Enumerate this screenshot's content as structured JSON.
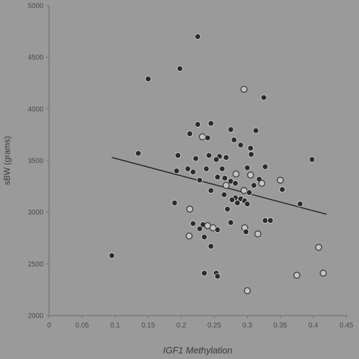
{
  "chart_data": {
    "type": "scatter",
    "title": "",
    "xlabel": "IGF1 Methylation",
    "ylabel": "sBW (grams)",
    "xlim": [
      0,
      0.45
    ],
    "ylim": [
      2000,
      5000
    ],
    "x_ticks": [
      "0",
      "0.05",
      "0.1",
      "0.15",
      "0.2",
      "0.25",
      "0.3",
      "0.35",
      "0.4",
      "0.45"
    ],
    "y_ticks": [
      "2000",
      "2500",
      "3000",
      "3500",
      "4000",
      "4500",
      "5000"
    ],
    "grid": false,
    "legend": "none",
    "colors": {
      "background": "#9a9a9a",
      "point": "#2b2b2b",
      "axis": "#707070",
      "trend": "#1e1e1e"
    },
    "trendline": {
      "x": [
        0.095,
        0.42
      ],
      "y": [
        3530,
        2980
      ]
    },
    "points": [
      {
        "x": 0.225,
        "y": 4700,
        "hollow": false
      },
      {
        "x": 0.15,
        "y": 4290,
        "hollow": false
      },
      {
        "x": 0.198,
        "y": 4390,
        "hollow": false
      },
      {
        "x": 0.295,
        "y": 4190,
        "hollow": true
      },
      {
        "x": 0.325,
        "y": 4110,
        "hollow": false
      },
      {
        "x": 0.225,
        "y": 3850,
        "hollow": false
      },
      {
        "x": 0.245,
        "y": 3860,
        "hollow": false
      },
      {
        "x": 0.275,
        "y": 3800,
        "hollow": false
      },
      {
        "x": 0.313,
        "y": 3790,
        "hollow": false
      },
      {
        "x": 0.213,
        "y": 3760,
        "hollow": false
      },
      {
        "x": 0.232,
        "y": 3730,
        "hollow": true
      },
      {
        "x": 0.24,
        "y": 3720,
        "hollow": false
      },
      {
        "x": 0.28,
        "y": 3700,
        "hollow": false
      },
      {
        "x": 0.29,
        "y": 3650,
        "hollow": false
      },
      {
        "x": 0.305,
        "y": 3620,
        "hollow": false
      },
      {
        "x": 0.135,
        "y": 3570,
        "hollow": false
      },
      {
        "x": 0.195,
        "y": 3550,
        "hollow": false
      },
      {
        "x": 0.242,
        "y": 3550,
        "hollow": false
      },
      {
        "x": 0.258,
        "y": 3540,
        "hollow": false
      },
      {
        "x": 0.268,
        "y": 3530,
        "hollow": false
      },
      {
        "x": 0.306,
        "y": 3560,
        "hollow": false
      },
      {
        "x": 0.222,
        "y": 3520,
        "hollow": false
      },
      {
        "x": 0.253,
        "y": 3510,
        "hollow": false
      },
      {
        "x": 0.398,
        "y": 3510,
        "hollow": false
      },
      {
        "x": 0.21,
        "y": 3420,
        "hollow": false
      },
      {
        "x": 0.238,
        "y": 3420,
        "hollow": false
      },
      {
        "x": 0.262,
        "y": 3420,
        "hollow": false
      },
      {
        "x": 0.3,
        "y": 3430,
        "hollow": false
      },
      {
        "x": 0.327,
        "y": 3440,
        "hollow": false
      },
      {
        "x": 0.193,
        "y": 3400,
        "hollow": false
      },
      {
        "x": 0.218,
        "y": 3390,
        "hollow": false
      },
      {
        "x": 0.283,
        "y": 3370,
        "hollow": true
      },
      {
        "x": 0.305,
        "y": 3360,
        "hollow": true
      },
      {
        "x": 0.255,
        "y": 3340,
        "hollow": false
      },
      {
        "x": 0.266,
        "y": 3330,
        "hollow": false
      },
      {
        "x": 0.318,
        "y": 3320,
        "hollow": false
      },
      {
        "x": 0.228,
        "y": 3310,
        "hollow": false
      },
      {
        "x": 0.275,
        "y": 3300,
        "hollow": false
      },
      {
        "x": 0.35,
        "y": 3310,
        "hollow": true
      },
      {
        "x": 0.282,
        "y": 3280,
        "hollow": false
      },
      {
        "x": 0.322,
        "y": 3280,
        "hollow": true
      },
      {
        "x": 0.268,
        "y": 3260,
        "hollow": true
      },
      {
        "x": 0.31,
        "y": 3260,
        "hollow": false
      },
      {
        "x": 0.245,
        "y": 3210,
        "hollow": false
      },
      {
        "x": 0.295,
        "y": 3210,
        "hollow": true
      },
      {
        "x": 0.353,
        "y": 3220,
        "hollow": false
      },
      {
        "x": 0.303,
        "y": 3190,
        "hollow": false
      },
      {
        "x": 0.265,
        "y": 3170,
        "hollow": false
      },
      {
        "x": 0.282,
        "y": 3140,
        "hollow": false
      },
      {
        "x": 0.29,
        "y": 3130,
        "hollow": false
      },
      {
        "x": 0.277,
        "y": 3120,
        "hollow": false
      },
      {
        "x": 0.296,
        "y": 3110,
        "hollow": false
      },
      {
        "x": 0.285,
        "y": 3090,
        "hollow": false
      },
      {
        "x": 0.3,
        "y": 3080,
        "hollow": false
      },
      {
        "x": 0.19,
        "y": 3090,
        "hollow": false
      },
      {
        "x": 0.38,
        "y": 3080,
        "hollow": false
      },
      {
        "x": 0.213,
        "y": 3030,
        "hollow": true
      },
      {
        "x": 0.27,
        "y": 3030,
        "hollow": false
      },
      {
        "x": 0.327,
        "y": 2920,
        "hollow": false
      },
      {
        "x": 0.335,
        "y": 2920,
        "hollow": false
      },
      {
        "x": 0.275,
        "y": 2900,
        "hollow": false
      },
      {
        "x": 0.218,
        "y": 2890,
        "hollow": false
      },
      {
        "x": 0.233,
        "y": 2880,
        "hollow": false
      },
      {
        "x": 0.24,
        "y": 2870,
        "hollow": true
      },
      {
        "x": 0.248,
        "y": 2850,
        "hollow": true
      },
      {
        "x": 0.228,
        "y": 2840,
        "hollow": false
      },
      {
        "x": 0.255,
        "y": 2830,
        "hollow": false
      },
      {
        "x": 0.296,
        "y": 2850,
        "hollow": true
      },
      {
        "x": 0.298,
        "y": 2810,
        "hollow": false
      },
      {
        "x": 0.316,
        "y": 2790,
        "hollow": true
      },
      {
        "x": 0.212,
        "y": 2770,
        "hollow": true
      },
      {
        "x": 0.235,
        "y": 2760,
        "hollow": false
      },
      {
        "x": 0.245,
        "y": 2670,
        "hollow": false
      },
      {
        "x": 0.408,
        "y": 2660,
        "hollow": true
      },
      {
        "x": 0.095,
        "y": 2580,
        "hollow": false
      },
      {
        "x": 0.235,
        "y": 2410,
        "hollow": false
      },
      {
        "x": 0.253,
        "y": 2410,
        "hollow": false
      },
      {
        "x": 0.255,
        "y": 2380,
        "hollow": false
      },
      {
        "x": 0.375,
        "y": 2390,
        "hollow": true
      },
      {
        "x": 0.415,
        "y": 2410,
        "hollow": true
      },
      {
        "x": 0.3,
        "y": 2240,
        "hollow": true
      }
    ]
  }
}
